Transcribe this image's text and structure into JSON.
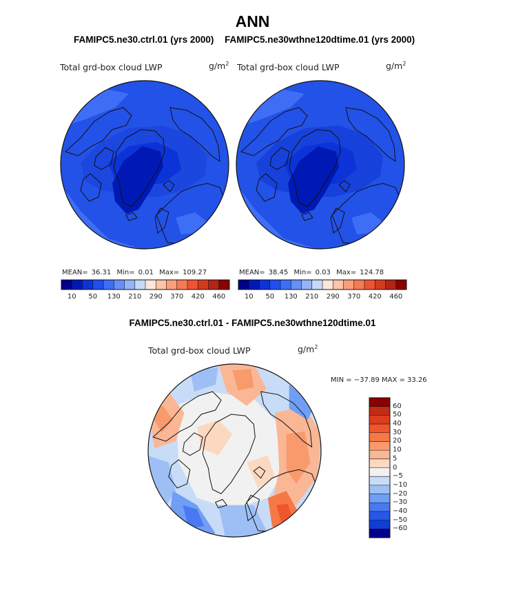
{
  "header": {
    "title": "ANN",
    "subtitle_left": "FAMIPC5.ne30.ctrl.01 (yrs 2000)",
    "subtitle_right": "FAMIPC5.ne30wthne120dtime.01 (yrs 2000)"
  },
  "chart_data": [
    {
      "type": "heatmap",
      "projection": "north-polar-stereographic",
      "case": "FAMIPC5.ne30.ctrl.01 (yrs 2000)",
      "variable": "Total grd-box cloud LWP",
      "units": "g/m",
      "units_exp": "2",
      "stats": {
        "mean_label": "MEAN=",
        "mean": "36.31",
        "min_label": "Min=",
        "min": "0.01",
        "max_label": "Max=",
        "max": "109.27"
      },
      "colorbar": {
        "orientation": "horizontal",
        "tick_labels": [
          "10",
          "50",
          "130",
          "210",
          "290",
          "370",
          "420",
          "460"
        ],
        "colors": [
          "#00008b",
          "#0019b4",
          "#0c33d8",
          "#1f4fee",
          "#3d6ef5",
          "#6690f7",
          "#93b5f8",
          "#c6daf9",
          "#fde7dc",
          "#fcc4a8",
          "#fa9f7a",
          "#f67a52",
          "#ee5430",
          "#d63a1e",
          "#b42414",
          "#8b0000"
        ]
      }
    },
    {
      "type": "heatmap",
      "projection": "north-polar-stereographic",
      "case": "FAMIPC5.ne30wthne120dtime.01 (yrs 2000)",
      "variable": "Total grd-box cloud LWP",
      "units": "g/m",
      "units_exp": "2",
      "stats": {
        "mean_label": "MEAN=",
        "mean": "38.45",
        "min_label": "Min=",
        "min": "0.03",
        "max_label": "Max=",
        "max": "124.78"
      },
      "colorbar": {
        "orientation": "horizontal",
        "tick_labels": [
          "10",
          "50",
          "130",
          "210",
          "290",
          "370",
          "420",
          "460"
        ],
        "colors": [
          "#00008b",
          "#0019b4",
          "#0c33d8",
          "#1f4fee",
          "#3d6ef5",
          "#6690f7",
          "#93b5f8",
          "#c6daf9",
          "#fde7dc",
          "#fcc4a8",
          "#fa9f7a",
          "#f67a52",
          "#ee5430",
          "#d63a1e",
          "#b42414",
          "#8b0000"
        ]
      }
    },
    {
      "type": "heatmap",
      "projection": "north-polar-stereographic",
      "title": "FAMIPC5.ne30.ctrl.01 - FAMIPC5.ne30wthne120dtime.01",
      "variable": "Total grd-box cloud LWP",
      "units": "g/m",
      "units_exp": "2",
      "stats": {
        "text": "MIN = −37.89 MAX =  33.26",
        "min": -37.89,
        "max": 33.26
      },
      "colorbar": {
        "orientation": "vertical",
        "tick_labels": [
          "60",
          "50",
          "40",
          "30",
          "20",
          "10",
          "5",
          "0",
          "−5",
          "−10",
          "−20",
          "−30",
          "−40",
          "−50",
          "−60"
        ],
        "colors": [
          "#8b0000",
          "#c32a14",
          "#dd3c1e",
          "#f0562c",
          "#f67846",
          "#f89a6c",
          "#fab795",
          "#fcd8c0",
          "#f1f1f1",
          "#c8dcf7",
          "#9dbff6",
          "#6f9ef4",
          "#4978f0",
          "#2757e6",
          "#103dd6",
          "#00008b"
        ]
      }
    }
  ]
}
